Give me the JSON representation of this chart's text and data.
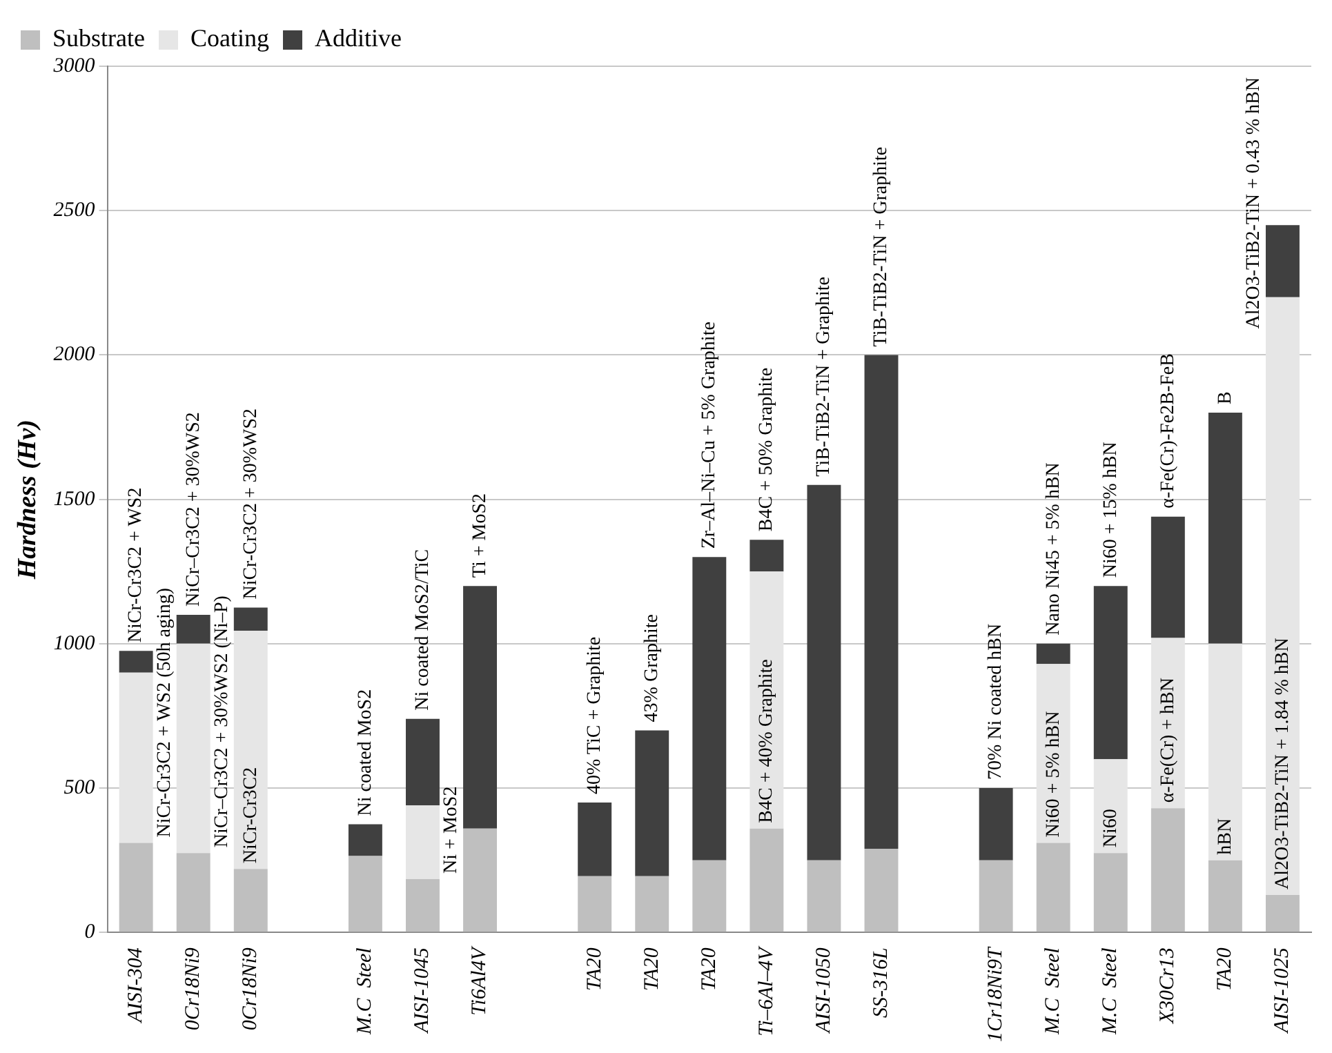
{
  "chart_data": {
    "type": "bar",
    "stacked": true,
    "ylabel": "Hardness (Hv)",
    "categories": [
      "AISI-304",
      "0Cr18Ni9",
      "0Cr18Ni9",
      null,
      "M.C  Steel",
      "AISI-1045",
      "Ti6Al4V",
      null,
      "TA20",
      "TA20",
      "TA20",
      "Ti–6Al–4V",
      "AISI-1050",
      "SS-316L",
      null,
      "1Cr18Ni9T",
      "M.C  Steel",
      "M.C  Steel",
      "X30Cr13",
      "TA20",
      "AISI-1025"
    ],
    "series": [
      {
        "name": "Substrate",
        "color": "#bfbfbf",
        "values": [
          310,
          275,
          220,
          null,
          265,
          185,
          360,
          null,
          195,
          195,
          250,
          360,
          250,
          290,
          null,
          250,
          310,
          275,
          430,
          250,
          130
        ]
      },
      {
        "name": "Coating",
        "color": "#e6e6e6",
        "values": [
          590,
          725,
          825,
          null,
          null,
          255,
          null,
          null,
          null,
          null,
          null,
          890,
          null,
          null,
          null,
          null,
          620,
          325,
          590,
          750,
          2070
        ]
      },
      {
        "name": "Additive",
        "color": "#404040",
        "values": [
          75,
          100,
          80,
          null,
          110,
          300,
          840,
          null,
          255,
          505,
          1050,
          110,
          1300,
          1710,
          null,
          250,
          70,
          600,
          420,
          800,
          250
        ]
      }
    ],
    "annotations": [
      "NiCr-Cr3C2 + WS2 (50h aging)",
      "NiCr-Cr3C2 + WS2",
      "NiCr–Cr3C2 + 30%WS2 (Ni–P)",
      "NiCr–Cr3C2 + 30%WS2",
      "NiCr-Cr3C2",
      "NiCr-Cr3C2 + 30%WS2",
      "Ni coated MoS2",
      "Ni + MoS2",
      "Ni coated MoS2/TiC",
      "Ti + MoS2",
      "40% TiC + Graphite",
      "43% Graphite",
      "Zr–Al–Ni–Cu + 5% Graphite",
      "B4C + 40% Graphite",
      "B4C + 50% Graphite",
      "TiB-TiB2-TiN + Graphite",
      "TiB-TiB2-TiN + Graphite",
      "70% Ni coated hBN",
      "Ni60 + 5% hBN",
      "Nano Ni45 + 5% hBN",
      "Ni60",
      "Ni60 + 15% hBN",
      "α-Fe(Cr) + hBN",
      "α-Fe(Cr)-Fe2B-FeB",
      "hBN",
      "B",
      "Al2O3-TiB2-TiN + 1.84 % hBN",
      "Al2O3-TiB2-TiN + 0.43 % hBN"
    ],
    "ylim": [
      0,
      3000
    ],
    "yticks": [
      0,
      500,
      1000,
      1500,
      2000,
      2500,
      3000
    ],
    "grid": "y",
    "legend": "top left"
  }
}
